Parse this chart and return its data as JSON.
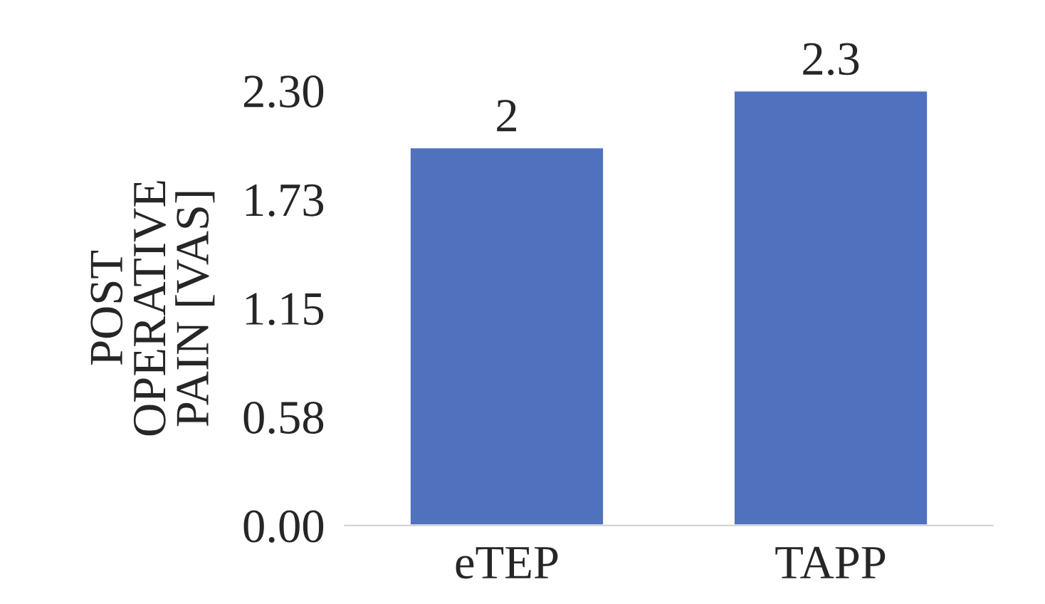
{
  "chart_data": {
    "type": "bar",
    "ylabel": "POST\nOPERATIVE\nPAIN [VAS]",
    "categories": [
      "eTEP",
      "TAPP"
    ],
    "values": [
      2,
      2.3
    ],
    "color": "#4f71be",
    "ylim": [
      0,
      2.3
    ],
    "yticks": [
      {
        "value": 0,
        "label": "0.00"
      },
      {
        "value": 0.575,
        "label": "0.58"
      },
      {
        "value": 1.15,
        "label": "1.15"
      },
      {
        "value": 1.725,
        "label": "1.73"
      },
      {
        "value": 2.3,
        "label": "2.30"
      }
    ],
    "data_labels": true,
    "grid": false,
    "legend": false
  }
}
